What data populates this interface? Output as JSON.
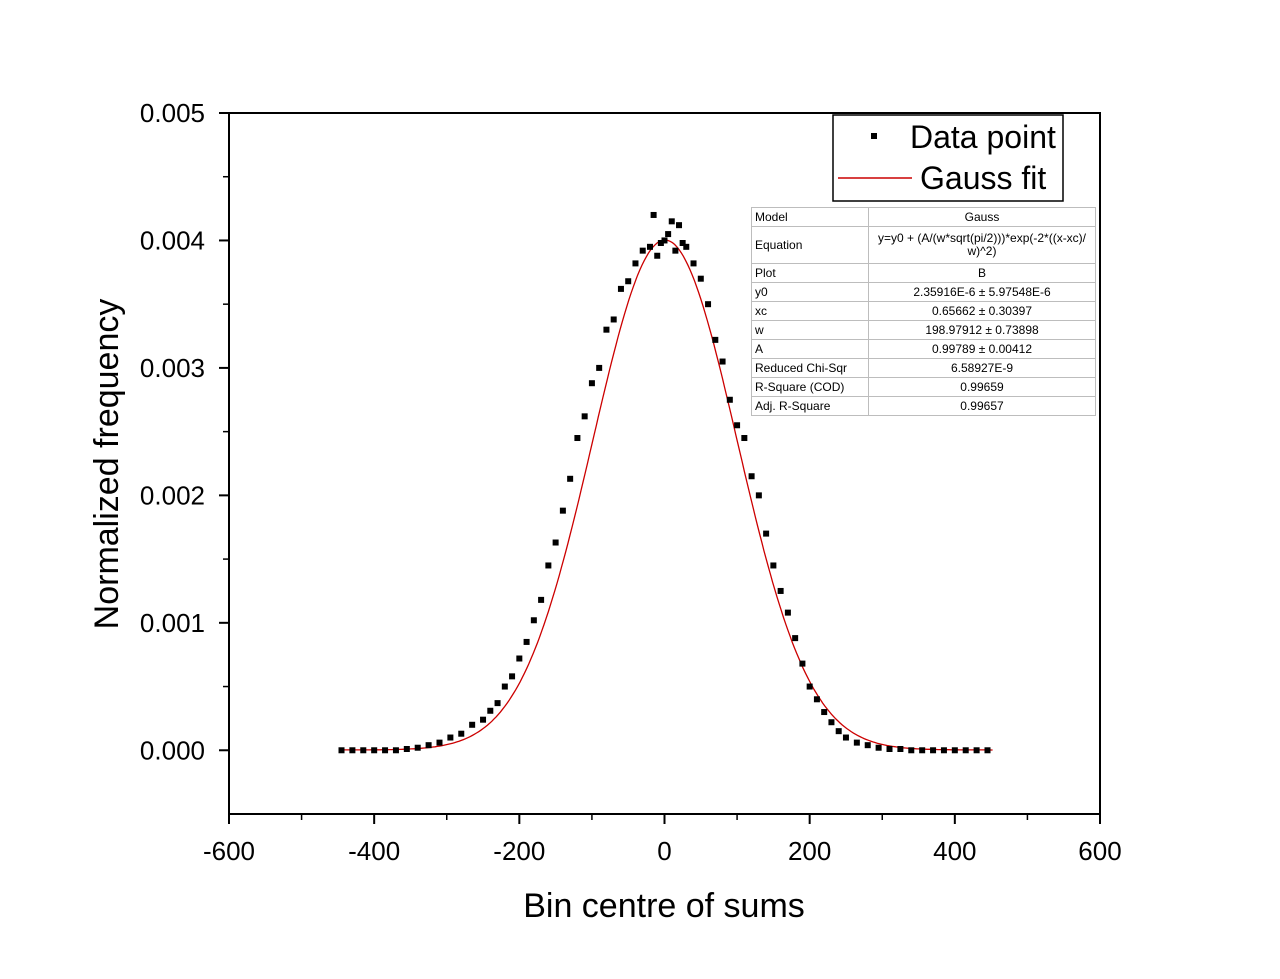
{
  "chart_data": {
    "type": "scatter",
    "xlabel": "Bin centre of sums",
    "ylabel": "Normalized frequency",
    "xlim": [
      -600,
      600
    ],
    "ylim": [
      -0.0005,
      0.005
    ],
    "x_ticks": [
      "-600",
      "-400",
      "-200",
      "0",
      "200",
      "400",
      "600"
    ],
    "y_ticks": [
      "0.000",
      "0.001",
      "0.002",
      "0.003",
      "0.004",
      "0.005"
    ],
    "grid": false,
    "legend": {
      "position": "top-right",
      "entries": [
        "Data point",
        "Gauss fit"
      ]
    },
    "colors": {
      "data": "#000000",
      "fit": "#cc0000"
    },
    "series": [
      {
        "name": "Data point",
        "kind": "scatter",
        "x": [
          -445,
          -430,
          -415,
          -400,
          -385,
          -370,
          -355,
          -340,
          -325,
          -310,
          -295,
          -280,
          -265,
          -250,
          -240,
          -230,
          -220,
          -210,
          -200,
          -190,
          -180,
          -170,
          -160,
          -150,
          -140,
          -130,
          -120,
          -110,
          -100,
          -90,
          -80,
          -70,
          -60,
          -50,
          -40,
          -30,
          -20,
          -15,
          -10,
          -5,
          0,
          5,
          10,
          15,
          20,
          25,
          30,
          40,
          50,
          60,
          70,
          80,
          90,
          100,
          110,
          120,
          130,
          140,
          150,
          160,
          170,
          180,
          190,
          200,
          210,
          220,
          230,
          240,
          250,
          265,
          280,
          295,
          310,
          325,
          340,
          355,
          370,
          385,
          400,
          415,
          430,
          445
        ],
        "y": [
          0.0,
          0.0,
          0.0,
          0.0,
          0.0,
          0.0,
          1e-05,
          2e-05,
          4e-05,
          6e-05,
          0.0001,
          0.00013,
          0.0002,
          0.00024,
          0.00031,
          0.00037,
          0.0005,
          0.00058,
          0.00072,
          0.00085,
          0.00102,
          0.00118,
          0.00145,
          0.00163,
          0.00188,
          0.00213,
          0.00245,
          0.00262,
          0.00288,
          0.003,
          0.0033,
          0.00338,
          0.00362,
          0.00368,
          0.00382,
          0.00392,
          0.00395,
          0.0042,
          0.00388,
          0.00398,
          0.004,
          0.00405,
          0.00415,
          0.00392,
          0.00412,
          0.00398,
          0.00395,
          0.00382,
          0.0037,
          0.0035,
          0.00322,
          0.00305,
          0.00275,
          0.00255,
          0.00245,
          0.00215,
          0.002,
          0.0017,
          0.00145,
          0.00125,
          0.00108,
          0.00088,
          0.00068,
          0.0005,
          0.0004,
          0.0003,
          0.00022,
          0.00015,
          0.0001,
          6e-05,
          4e-05,
          2e-05,
          1e-05,
          1e-05,
          0.0,
          0.0,
          0.0,
          0.0,
          0.0,
          0.0,
          0.0,
          0.0
        ]
      },
      {
        "name": "Gauss fit",
        "kind": "line",
        "model": {
          "y0": 2.35916e-06,
          "xc": 0.65662,
          "w": 198.97912,
          "A": 0.99789
        }
      }
    ]
  },
  "fit_table": {
    "rows": [
      {
        "key": "Model",
        "value": "Gauss"
      },
      {
        "key": "Equation",
        "value": "y=y0 + (A/(w*sqrt(pi/2)))*exp(-2*((x-xc)/w)^2)"
      },
      {
        "key": "Plot",
        "value": "B"
      },
      {
        "key": "y0",
        "value": "2.35916E-6 ± 5.97548E-6"
      },
      {
        "key": "xc",
        "value": "0.65662 ± 0.30397"
      },
      {
        "key": "w",
        "value": "198.97912 ± 0.73898"
      },
      {
        "key": "A",
        "value": "0.99789 ± 0.00412"
      },
      {
        "key": "Reduced Chi-Sqr",
        "value": "6.58927E-9"
      },
      {
        "key": "R-Square (COD)",
        "value": "0.99659"
      },
      {
        "key": "Adj. R-Square",
        "value": "0.99657"
      }
    ]
  }
}
